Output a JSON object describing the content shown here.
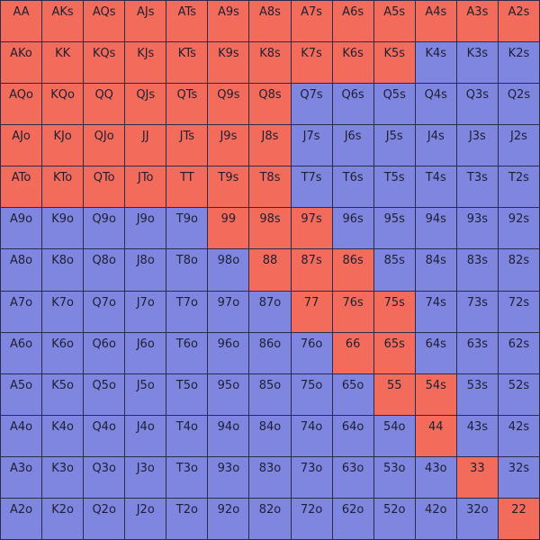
{
  "range_grid": {
    "palette": {
      "r": "#f26b5b",
      "b": "#7f86e0"
    },
    "rows": [
      {
        "fills": "rrrrrrrrrrrrr",
        "labels": [
          "AA",
          "AKs",
          "AQs",
          "AJs",
          "ATs",
          "A9s",
          "A8s",
          "A7s",
          "A6s",
          "A5s",
          "A4s",
          "A3s",
          "A2s"
        ]
      },
      {
        "fills": "rrrrrrrrrrbbb",
        "labels": [
          "AKo",
          "KK",
          "KQs",
          "KJs",
          "KTs",
          "K9s",
          "K8s",
          "K7s",
          "K6s",
          "K5s",
          "K4s",
          "K3s",
          "K2s"
        ]
      },
      {
        "fills": "rrrrrrrbbbbbb",
        "labels": [
          "AQo",
          "KQo",
          "QQ",
          "QJs",
          "QTs",
          "Q9s",
          "Q8s",
          "Q7s",
          "Q6s",
          "Q5s",
          "Q4s",
          "Q3s",
          "Q2s"
        ]
      },
      {
        "fills": "rrrrrrrbbbbbb",
        "labels": [
          "AJo",
          "KJo",
          "QJo",
          "JJ",
          "JTs",
          "J9s",
          "J8s",
          "J7s",
          "J6s",
          "J5s",
          "J4s",
          "J3s",
          "J2s"
        ]
      },
      {
        "fills": "rrrrrrrbbbbbb",
        "labels": [
          "ATo",
          "KTo",
          "QTo",
          "JTo",
          "TT",
          "T9s",
          "T8s",
          "T7s",
          "T6s",
          "T5s",
          "T4s",
          "T3s",
          "T2s"
        ]
      },
      {
        "fills": "bbbbbrrrbbbbb",
        "labels": [
          "A9o",
          "K9o",
          "Q9o",
          "J9o",
          "T9o",
          "99",
          "98s",
          "97s",
          "96s",
          "95s",
          "94s",
          "93s",
          "92s"
        ]
      },
      {
        "fills": "bbbbbbrrrbbbb",
        "labels": [
          "A8o",
          "K8o",
          "Q8o",
          "J8o",
          "T8o",
          "98o",
          "88",
          "87s",
          "86s",
          "85s",
          "84s",
          "83s",
          "82s"
        ]
      },
      {
        "fills": "bbbbbbbrrrbbb",
        "labels": [
          "A7o",
          "K7o",
          "Q7o",
          "J7o",
          "T7o",
          "97o",
          "87o",
          "77",
          "76s",
          "75s",
          "74s",
          "73s",
          "72s"
        ]
      },
      {
        "fills": "bbbbbbbbrrbbb",
        "labels": [
          "A6o",
          "K6o",
          "Q6o",
          "J6o",
          "T6o",
          "96o",
          "86o",
          "76o",
          "66",
          "65s",
          "64s",
          "63s",
          "62s"
        ]
      },
      {
        "fills": "bbbbbbbbbrrbb",
        "labels": [
          "A5o",
          "K5o",
          "Q5o",
          "J5o",
          "T5o",
          "95o",
          "85o",
          "75o",
          "65o",
          "55",
          "54s",
          "53s",
          "52s"
        ]
      },
      {
        "fills": "bbbbbbbbbbrbb",
        "labels": [
          "A4o",
          "K4o",
          "Q4o",
          "J4o",
          "T4o",
          "94o",
          "84o",
          "74o",
          "64o",
          "54o",
          "44",
          "43s",
          "42s"
        ]
      },
      {
        "fills": "bbbbbbbbbbbrb",
        "labels": [
          "A3o",
          "K3o",
          "Q3o",
          "J3o",
          "T3o",
          "93o",
          "83o",
          "73o",
          "63o",
          "53o",
          "43o",
          "33",
          "32s"
        ]
      },
      {
        "fills": "bbbbbbbbbbbbr",
        "labels": [
          "A2o",
          "K2o",
          "Q2o",
          "J2o",
          "T2o",
          "92o",
          "82o",
          "72o",
          "62o",
          "52o",
          "42o",
          "32o",
          "22"
        ]
      }
    ]
  }
}
